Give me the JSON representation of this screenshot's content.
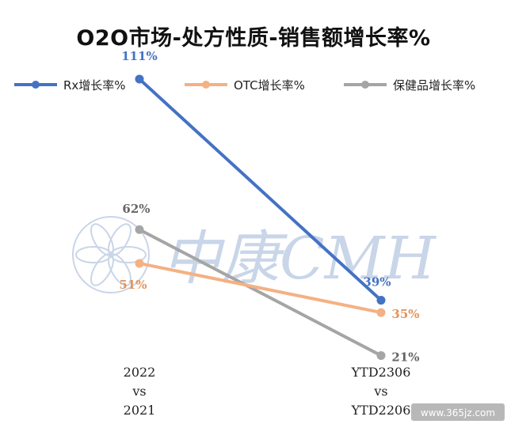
{
  "title": "O2O市场-处方性质-销售额增长率%",
  "watermark": {
    "text": "中康CMH",
    "color": "#c9d5e8"
  },
  "corner_watermark": "www.365jz.com",
  "chart_data": {
    "type": "line",
    "title": "O2O市场-处方性质-销售额增长率%",
    "legend_position": "top",
    "grid": false,
    "categories": [
      [
        "2022",
        "vs",
        "2021"
      ],
      [
        "YTD2306",
        "vs",
        "YTD2206"
      ]
    ],
    "ylim": [
      0,
      120
    ],
    "series": [
      {
        "name": "Rx增长率%",
        "color": "#4472c4",
        "values": [
          111,
          39
        ],
        "labels": [
          "111%",
          "39%"
        ]
      },
      {
        "name": "OTC增长率%",
        "color": "#f4b183",
        "values": [
          51,
          35
        ],
        "labels": [
          "51%",
          "35%"
        ]
      },
      {
        "name": "保健品增长率%",
        "color": "#a5a5a5",
        "values": [
          62,
          21
        ],
        "labels": [
          "62%",
          "21%"
        ]
      }
    ]
  }
}
